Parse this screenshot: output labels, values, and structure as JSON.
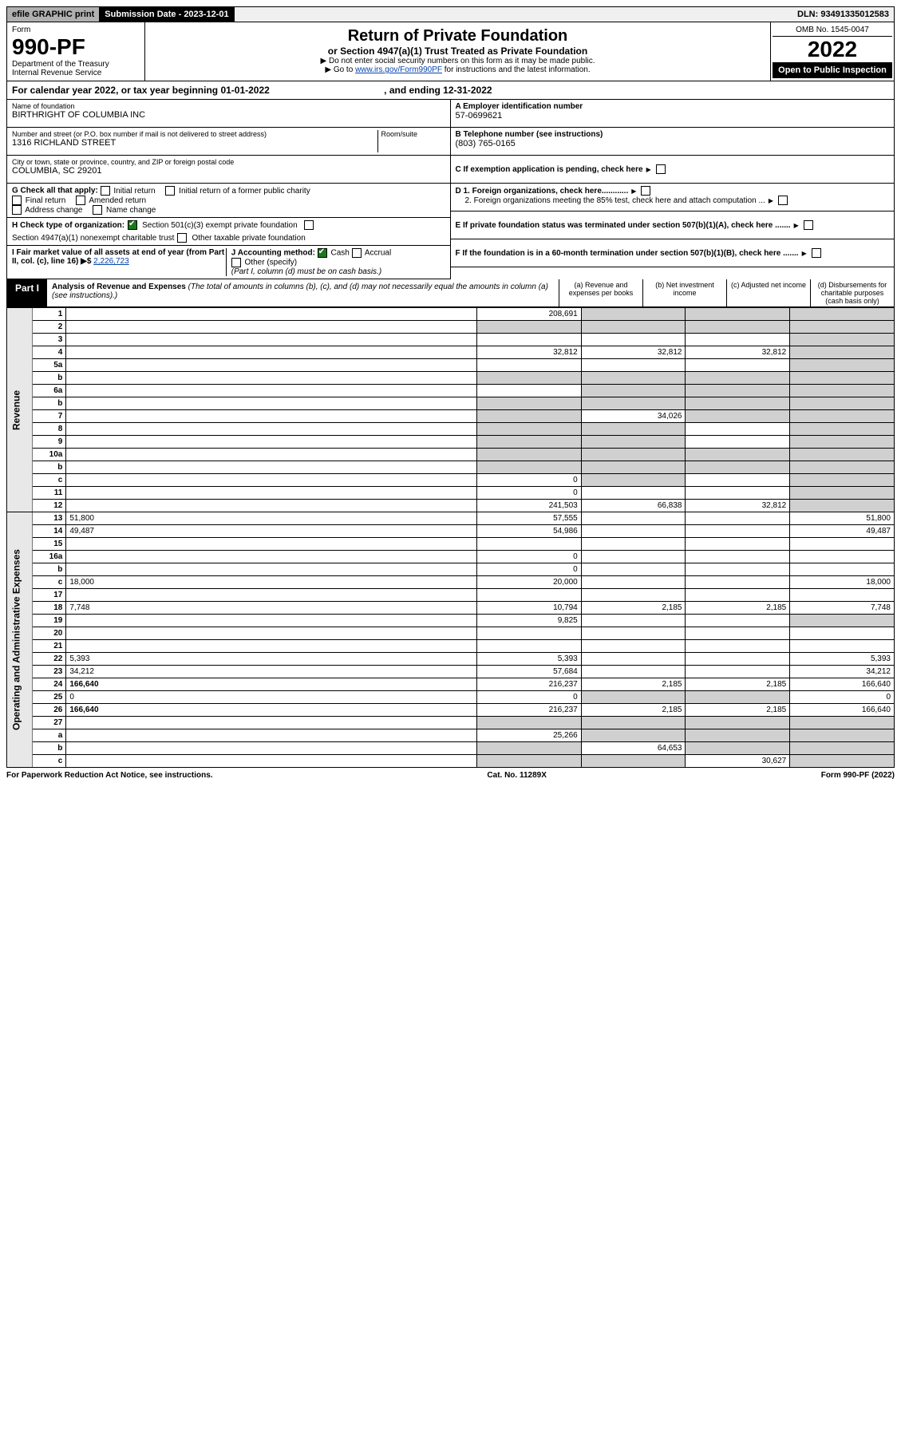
{
  "topbar": {
    "efile": "efile GRAPHIC print",
    "subdate_label": "Submission Date - 2023-12-01",
    "dln": "DLN: 93491335012583"
  },
  "header": {
    "form_label": "Form",
    "form_no": "990-PF",
    "dept1": "Department of the Treasury",
    "dept2": "Internal Revenue Service",
    "title": "Return of Private Foundation",
    "subtitle": "or Section 4947(a)(1) Trust Treated as Private Foundation",
    "instr1": "▶ Do not enter social security numbers on this form as it may be made public.",
    "instr2_prefix": "▶ Go to ",
    "instr2_link": "www.irs.gov/Form990PF",
    "instr2_suffix": " for instructions and the latest information.",
    "omb": "OMB No. 1545-0047",
    "year": "2022",
    "openpub": "Open to Public Inspection"
  },
  "calyear": {
    "text": "For calendar year 2022, or tax year beginning 01-01-2022",
    "end": ", and ending 12-31-2022"
  },
  "info": {
    "name_label": "Name of foundation",
    "name": "BIRTHRIGHT OF COLUMBIA INC",
    "addr_label": "Number and street (or P.O. box number if mail is not delivered to street address)",
    "addr": "1316 RICHLAND STREET",
    "room_label": "Room/suite",
    "city_label": "City or town, state or province, country, and ZIP or foreign postal code",
    "city": "COLUMBIA, SC  29201",
    "a_label": "A Employer identification number",
    "a_val": "57-0699621",
    "b_label": "B Telephone number (see instructions)",
    "b_val": "(803) 765-0165",
    "c_label": "C If exemption application is pending, check here",
    "d1_label": "D 1. Foreign organizations, check here............",
    "d2_label": "2. Foreign organizations meeting the 85% test, check here and attach computation ...",
    "e_label": "E If private foundation status was terminated under section 507(b)(1)(A), check here .......",
    "f_label": "F If the foundation is in a 60-month termination under section 507(b)(1)(B), check here .......",
    "g_label": "G Check all that apply:",
    "g_opts": [
      "Initial return",
      "Initial return of a former public charity",
      "Final return",
      "Amended return",
      "Address change",
      "Name change"
    ],
    "h_label": "H Check type of organization:",
    "h_opt1": "Section 501(c)(3) exempt private foundation",
    "h_opt2": "Section 4947(a)(1) nonexempt charitable trust",
    "h_opt3": "Other taxable private foundation",
    "i_label": "I Fair market value of all assets at end of year (from Part II, col. (c), line 16) ▶$ ",
    "i_val": "2,226,723",
    "j_label": "J Accounting method:",
    "j_cash": "Cash",
    "j_accrual": "Accrual",
    "j_other": "Other (specify)",
    "j_note": "(Part I, column (d) must be on cash basis.)"
  },
  "part1": {
    "tab": "Part I",
    "title": "Analysis of Revenue and Expenses",
    "note": "(The total of amounts in columns (b), (c), and (d) may not necessarily equal the amounts in column (a) (see instructions).)",
    "col_a": "(a) Revenue and expenses per books",
    "col_b": "(b) Net investment income",
    "col_c": "(c) Adjusted net income",
    "col_d": "(d) Disbursements for charitable purposes (cash basis only)"
  },
  "side": {
    "revenue": "Revenue",
    "expenses": "Operating and Administrative Expenses"
  },
  "rows": [
    {
      "n": "1",
      "d": "",
      "a": "208,691",
      "b": "",
      "c": "",
      "shade_bcd": true
    },
    {
      "n": "2",
      "d": "",
      "a": "",
      "b": "",
      "c": "",
      "shade_all": true,
      "bold_not": true
    },
    {
      "n": "3",
      "d": "",
      "a": "",
      "b": "",
      "c": "",
      "shade_d": true
    },
    {
      "n": "4",
      "d": "",
      "a": "32,812",
      "b": "32,812",
      "c": "32,812",
      "shade_d": true
    },
    {
      "n": "5a",
      "d": "",
      "a": "",
      "b": "",
      "c": "",
      "shade_d": true
    },
    {
      "n": "b",
      "d": "",
      "a": "",
      "b": "",
      "c": "",
      "shade_all": true,
      "inline": true
    },
    {
      "n": "6a",
      "d": "",
      "a": "",
      "b": "",
      "c": "",
      "shade_bcd": true
    },
    {
      "n": "b",
      "d": "",
      "a": "",
      "b": "",
      "c": "",
      "shade_all": true,
      "inline": true
    },
    {
      "n": "7",
      "d": "",
      "a": "",
      "b": "34,026",
      "c": "",
      "shade_a": true,
      "shade_cd": true
    },
    {
      "n": "8",
      "d": "",
      "a": "",
      "b": "",
      "c": "",
      "shade_abd": true
    },
    {
      "n": "9",
      "d": "",
      "a": "",
      "b": "",
      "c": "",
      "shade_abd": true
    },
    {
      "n": "10a",
      "d": "",
      "a": "",
      "b": "",
      "c": "",
      "shade_all": true,
      "inline": true
    },
    {
      "n": "b",
      "d": "",
      "a": "",
      "b": "",
      "c": "",
      "shade_all": true,
      "inline": true
    },
    {
      "n": "c",
      "d": "",
      "a": "0",
      "b": "",
      "c": "",
      "shade_bd": true
    },
    {
      "n": "11",
      "d": "",
      "a": "0",
      "b": "",
      "c": "",
      "shade_d": true
    },
    {
      "n": "12",
      "d": "",
      "a": "241,503",
      "b": "66,838",
      "c": "32,812",
      "bold": true,
      "shade_d": true
    },
    {
      "n": "13",
      "d": "51,800",
      "a": "57,555",
      "b": "",
      "c": ""
    },
    {
      "n": "14",
      "d": "49,487",
      "a": "54,986",
      "b": "",
      "c": ""
    },
    {
      "n": "15",
      "d": "",
      "a": "",
      "b": "",
      "c": ""
    },
    {
      "n": "16a",
      "d": "",
      "a": "0",
      "b": "",
      "c": ""
    },
    {
      "n": "b",
      "d": "",
      "a": "0",
      "b": "",
      "c": ""
    },
    {
      "n": "c",
      "d": "18,000",
      "a": "20,000",
      "b": "",
      "c": ""
    },
    {
      "n": "17",
      "d": "",
      "a": "",
      "b": "",
      "c": ""
    },
    {
      "n": "18",
      "d": "7,748",
      "a": "10,794",
      "b": "2,185",
      "c": "2,185"
    },
    {
      "n": "19",
      "d": "",
      "a": "9,825",
      "b": "",
      "c": "",
      "shade_d": true
    },
    {
      "n": "20",
      "d": "",
      "a": "",
      "b": "",
      "c": ""
    },
    {
      "n": "21",
      "d": "",
      "a": "",
      "b": "",
      "c": ""
    },
    {
      "n": "22",
      "d": "5,393",
      "a": "5,393",
      "b": "",
      "c": ""
    },
    {
      "n": "23",
      "d": "34,212",
      "a": "57,684",
      "b": "",
      "c": ""
    },
    {
      "n": "24",
      "d": "166,640",
      "a": "216,237",
      "b": "2,185",
      "c": "2,185",
      "bold": true
    },
    {
      "n": "25",
      "d": "0",
      "a": "0",
      "b": "",
      "c": "",
      "shade_bc": true
    },
    {
      "n": "26",
      "d": "166,640",
      "a": "216,237",
      "b": "2,185",
      "c": "2,185",
      "bold": true
    },
    {
      "n": "27",
      "d": "",
      "a": "",
      "b": "",
      "c": "",
      "shade_all": true
    },
    {
      "n": "a",
      "d": "",
      "a": "25,266",
      "b": "",
      "c": "",
      "bold": true,
      "shade_bcd": true
    },
    {
      "n": "b",
      "d": "",
      "a": "",
      "b": "64,653",
      "c": "",
      "bold": true,
      "shade_a": true,
      "shade_cd": true
    },
    {
      "n": "c",
      "d": "",
      "a": "",
      "b": "",
      "c": "30,627",
      "bold": true,
      "shade_abd": true
    }
  ],
  "footer": {
    "left": "For Paperwork Reduction Act Notice, see instructions.",
    "center": "Cat. No. 11289X",
    "right": "Form 990-PF (2022)"
  }
}
